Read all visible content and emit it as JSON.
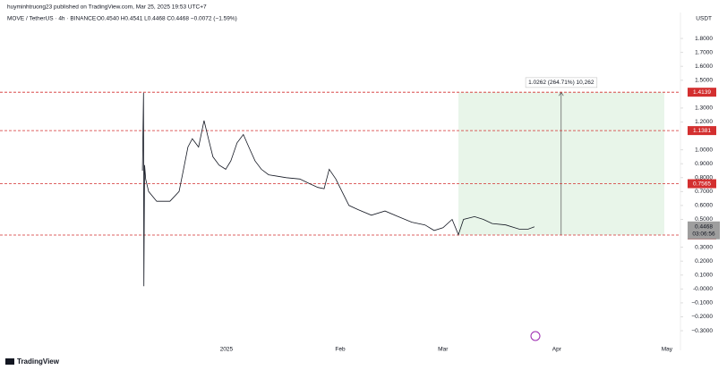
{
  "header": {
    "author_line": "huyminhtruong23 published on TradingView.com, Mar 25, 2025 19:53 UTC+7",
    "symbol": "MOVE / TetherUS · 4h · BINANCE",
    "ohlc": "O0.4540 H0.4541 L0.4468 C0.4468 −0.0072 (−1.59%)",
    "currency": "USDT"
  },
  "footer": {
    "brand": "TradingView"
  },
  "chart_data": {
    "type": "line",
    "color": "#131722",
    "x": [
      -22.9,
      -22.6,
      -22.5,
      -22.3,
      -22.0,
      -21.2,
      -19.0,
      -15.4,
      -12.9,
      -11.7,
      -10.5,
      -9.3,
      -7.6,
      -6.1,
      -4.9,
      -3.7,
      -2.0,
      -0.2,
      1.2,
      2.9,
      4.6,
      6.1,
      7.8,
      9.5,
      11.5,
      13.9,
      16.3,
      20.0,
      22.4,
      24.9,
      26.6,
      28.0,
      29.8,
      31.5,
      33.4,
      35.9,
      39.5,
      43.2,
      46.8,
      50.5,
      54.1,
      56.6,
      59.0,
      61.5,
      63.2,
      64.6,
      67.6,
      70.0,
      72.4,
      76.1,
      79.8,
      82.2,
      83.9
    ],
    "values": [
      0.85,
      1.41,
      0.02,
      0.89,
      0.79,
      0.7,
      0.63,
      0.63,
      0.7,
      0.86,
      1.02,
      1.08,
      1.02,
      1.21,
      1.08,
      0.95,
      0.89,
      0.86,
      0.92,
      1.05,
      1.11,
      1.02,
      0.92,
      0.86,
      0.82,
      0.81,
      0.8,
      0.79,
      0.76,
      0.73,
      0.72,
      0.86,
      0.79,
      0.7,
      0.6,
      0.57,
      0.53,
      0.56,
      0.52,
      0.48,
      0.46,
      0.42,
      0.44,
      0.5,
      0.39,
      0.5,
      0.52,
      0.5,
      0.47,
      0.46,
      0.43,
      0.43,
      0.4468
    ],
    "xlim": [
      -61.7,
      123.7
    ],
    "xticks": [
      {
        "value": 0,
        "label": "2025"
      },
      {
        "value": 31,
        "label": "Feb"
      },
      {
        "value": 59,
        "label": "Mar"
      },
      {
        "value": 90,
        "label": "Apr"
      },
      {
        "value": 120,
        "label": "May"
      }
    ],
    "ylim": [
      -0.396,
      1.948
    ],
    "yticks": [
      {
        "value": 1.8,
        "label": "1.8000"
      },
      {
        "value": 1.7,
        "label": "1.7000"
      },
      {
        "value": 1.6,
        "label": "1.6000"
      },
      {
        "value": 1.5,
        "label": "1.5000"
      },
      {
        "value": 1.3,
        "label": "1.3000"
      },
      {
        "value": 1.2,
        "label": "1.2000"
      },
      {
        "value": 1.0,
        "label": "1.0000"
      },
      {
        "value": 0.9,
        "label": "0.9000"
      },
      {
        "value": 0.8,
        "label": "0.8000"
      },
      {
        "value": 0.7,
        "label": "0.7000"
      },
      {
        "value": 0.6,
        "label": "0.6000"
      },
      {
        "value": 0.5,
        "label": "0.5000"
      },
      {
        "value": 0.3,
        "label": "0.3000"
      },
      {
        "value": 0.2,
        "label": "0.2000"
      },
      {
        "value": 0.1,
        "label": "0.1000"
      },
      {
        "value": 0,
        "label": "-0.0000"
      },
      {
        "value": -0.1,
        "label": "−0.1000"
      },
      {
        "value": -0.2,
        "label": "−0.2000"
      },
      {
        "value": -0.3,
        "label": "−0.3000"
      }
    ],
    "levels": [
      {
        "value": 1.4139,
        "color": "#d32f2f"
      },
      {
        "value": 1.1381,
        "color": "#d32f2f"
      },
      {
        "value": 0.7565,
        "color": "#d32f2f"
      },
      {
        "value": 0.3877,
        "color": "#d32f2f"
      }
    ],
    "current_price": {
      "value": 0.4468,
      "countdown": "03:06:56",
      "color": "#9e9e9e"
    },
    "measure": {
      "x_start": 63.2,
      "x_end": 119.3,
      "from": 0.3877,
      "to": 1.4139,
      "arrow_x": 91.2,
      "label": "1.0262 (264.71%) 10,262",
      "color": "#e8f5e9"
    }
  }
}
